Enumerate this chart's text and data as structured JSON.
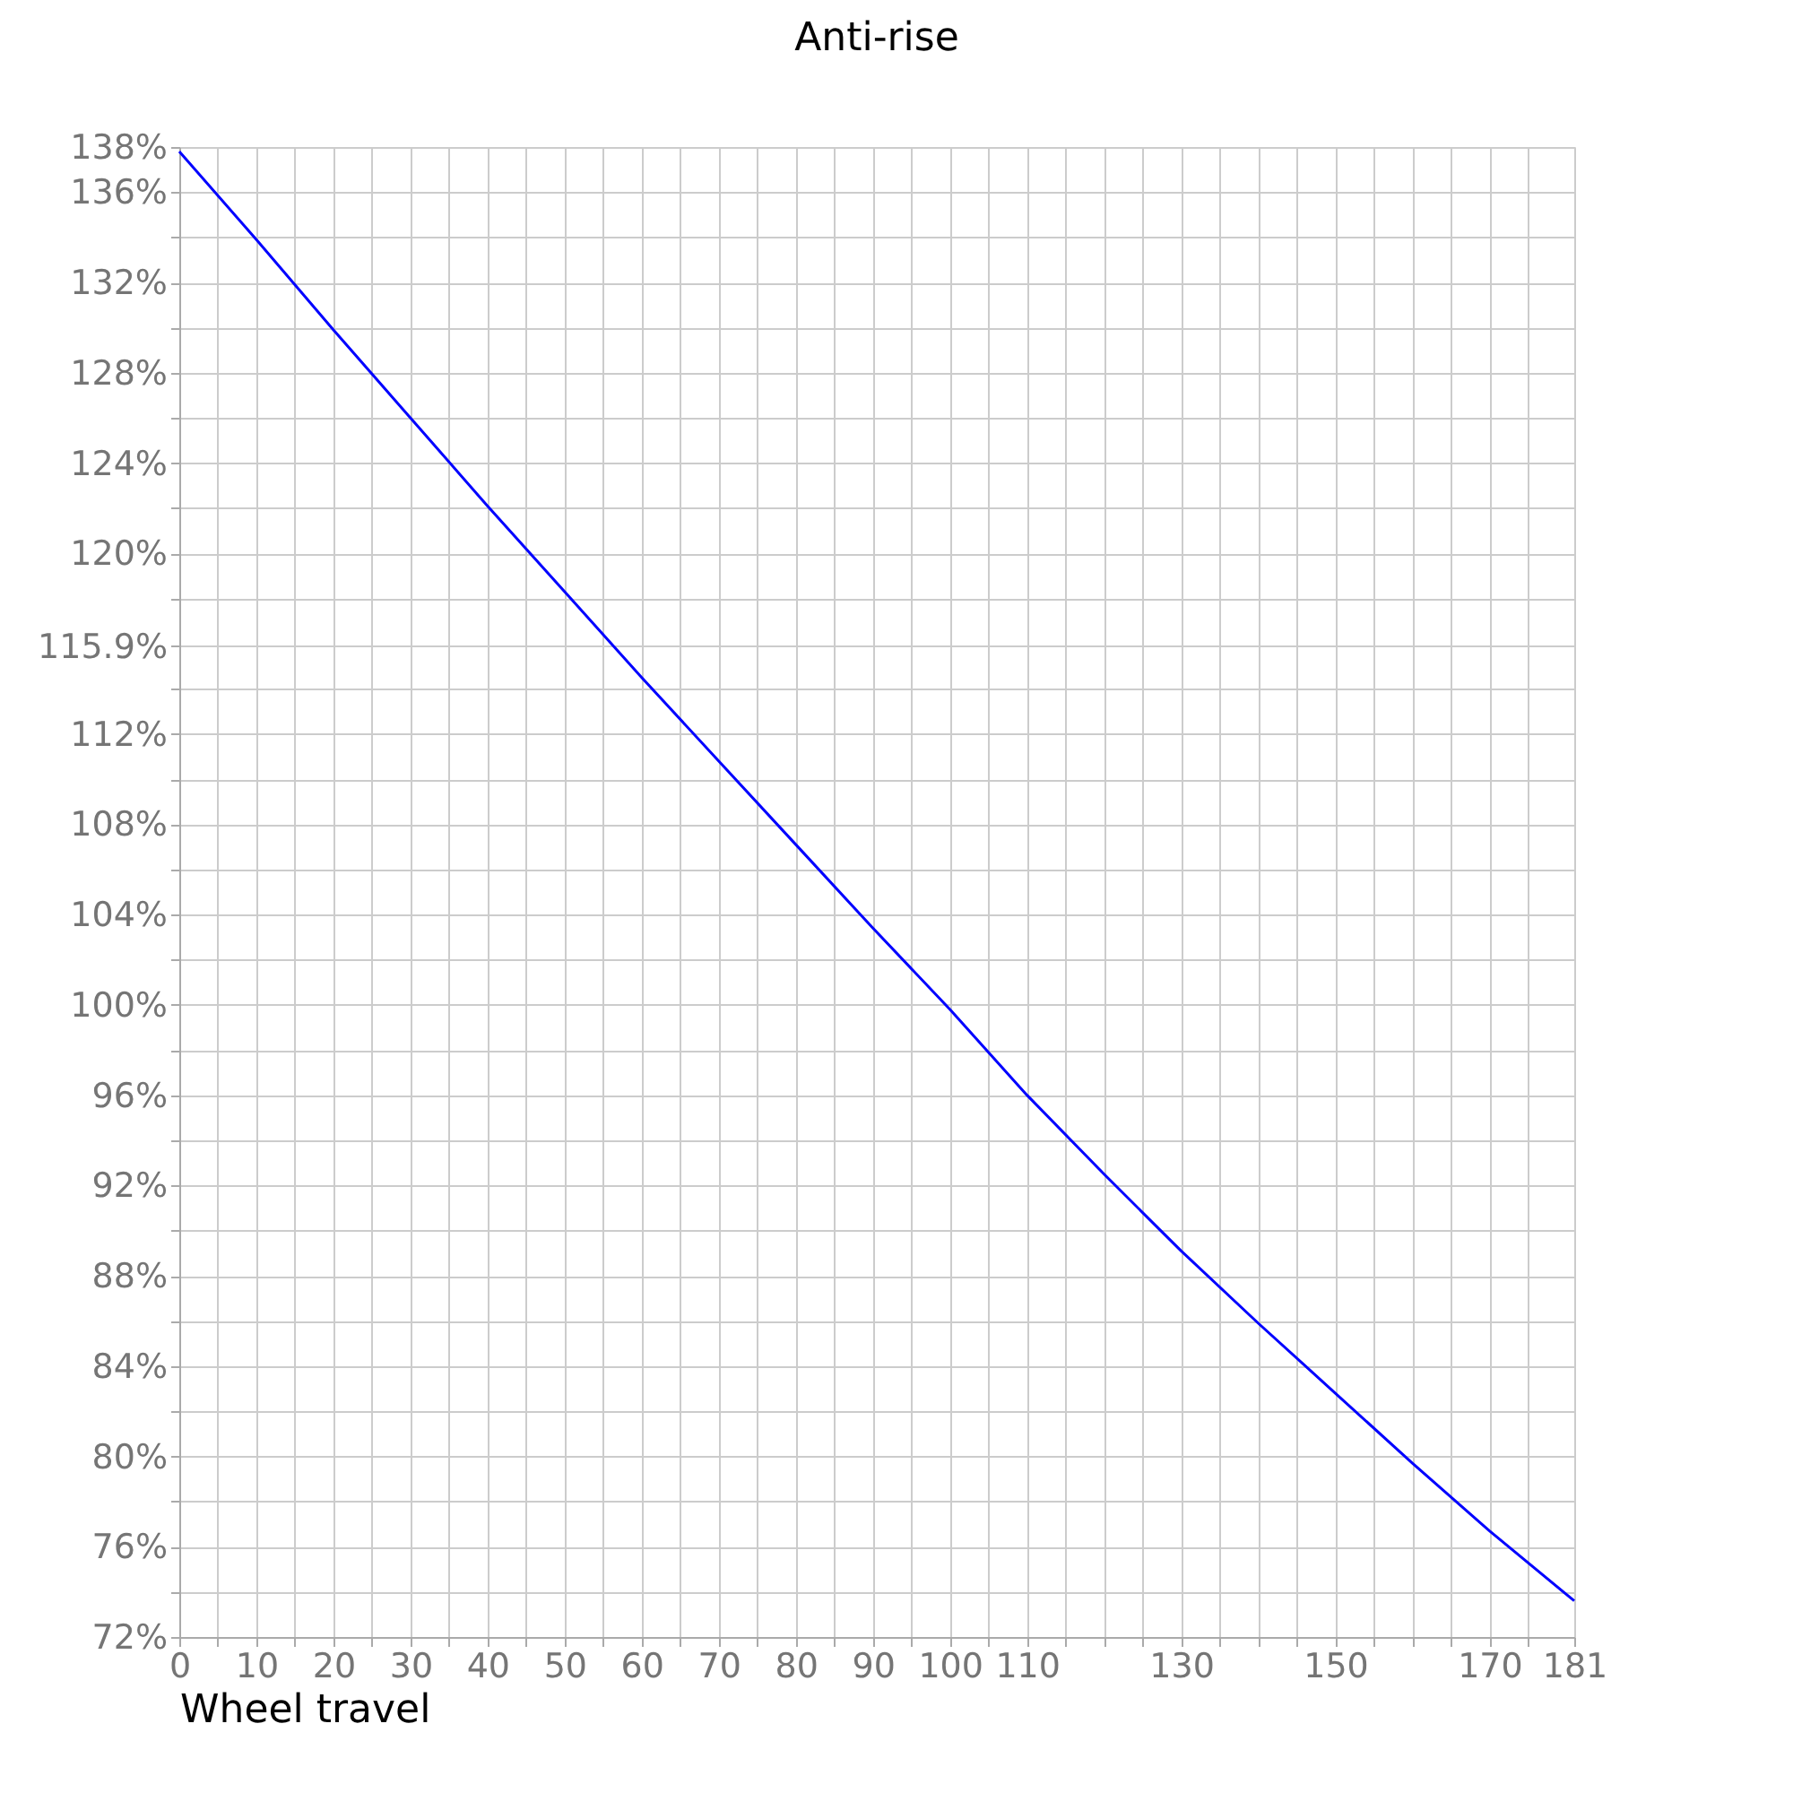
{
  "chart_data": {
    "type": "line",
    "title": "Anti-rise",
    "xlabel": "Wheel travel",
    "x": [
      0,
      10,
      20,
      30,
      40,
      50,
      60,
      70,
      80,
      90,
      100,
      110,
      120,
      130,
      140,
      150,
      160,
      170,
      181
    ],
    "series": [
      {
        "color": "#0000ff",
        "values": [
          137.8,
          133.9,
          129.9,
          126.0,
          122.1,
          118.3,
          114.5,
          110.8,
          107.1,
          103.4,
          99.8,
          96.0,
          92.5,
          89.1,
          85.9,
          82.8,
          79.7,
          76.7,
          73.6
        ]
      }
    ],
    "xlim": [
      0,
      181
    ],
    "xticks": [
      0,
      {
        "value": 5,
        "label": null
      },
      10,
      {
        "value": 15,
        "label": null
      },
      20,
      {
        "value": 25,
        "label": null
      },
      30,
      {
        "value": 35,
        "label": null
      },
      40,
      {
        "value": 45,
        "label": null
      },
      50,
      {
        "value": 55,
        "label": null
      },
      60,
      {
        "value": 65,
        "label": null
      },
      70,
      {
        "value": 75,
        "label": null
      },
      80,
      {
        "value": 85,
        "label": null
      },
      90,
      {
        "value": 95,
        "label": null
      },
      100,
      {
        "value": 105,
        "label": null
      },
      110,
      {
        "value": 115,
        "label": null
      },
      {
        "value": 120,
        "label": null
      },
      {
        "value": 125,
        "label": null
      },
      130,
      {
        "value": 135,
        "label": null
      },
      {
        "value": 140,
        "label": null
      },
      {
        "value": 145,
        "label": null
      },
      150,
      {
        "value": 155,
        "label": null
      },
      {
        "value": 160,
        "label": null
      },
      {
        "value": 165,
        "label": null
      },
      170,
      {
        "value": 175,
        "label": null
      },
      181
    ],
    "ylim": [
      72,
      138
    ],
    "yticks": [
      {
        "value": 72,
        "label": "72%"
      },
      {
        "value": 74,
        "label": null
      },
      {
        "value": 76,
        "label": "76%"
      },
      {
        "value": 78,
        "label": null
      },
      {
        "value": 80,
        "label": "80%"
      },
      {
        "value": 82,
        "label": null
      },
      {
        "value": 84,
        "label": "84%"
      },
      {
        "value": 86,
        "label": null
      },
      {
        "value": 88,
        "label": "88%"
      },
      {
        "value": 90,
        "label": null
      },
      {
        "value": 92,
        "label": "92%"
      },
      {
        "value": 94,
        "label": null
      },
      {
        "value": 96,
        "label": "96%"
      },
      {
        "value": 98,
        "label": null
      },
      {
        "value": 100,
        "label": "100%"
      },
      {
        "value": 102,
        "label": null
      },
      {
        "value": 104,
        "label": "104%"
      },
      {
        "value": 106,
        "label": null
      },
      {
        "value": 108,
        "label": "108%"
      },
      {
        "value": 110,
        "label": null
      },
      {
        "value": 112,
        "label": "112%"
      },
      {
        "value": 114,
        "label": null
      },
      {
        "value": 115.9,
        "label": "115.9%"
      },
      {
        "value": 118,
        "label": null
      },
      {
        "value": 120,
        "label": "120%"
      },
      {
        "value": 122,
        "label": null
      },
      {
        "value": 124,
        "label": "124%"
      },
      {
        "value": 126,
        "label": null
      },
      {
        "value": 128,
        "label": "128%"
      },
      {
        "value": 130,
        "label": null
      },
      {
        "value": 132,
        "label": "132%"
      },
      {
        "value": 134,
        "label": null
      },
      {
        "value": 136,
        "label": "136%"
      },
      {
        "value": 138,
        "label": "138%"
      }
    ],
    "grid": true,
    "legend": false,
    "marker": "none",
    "line_style": "solid"
  }
}
